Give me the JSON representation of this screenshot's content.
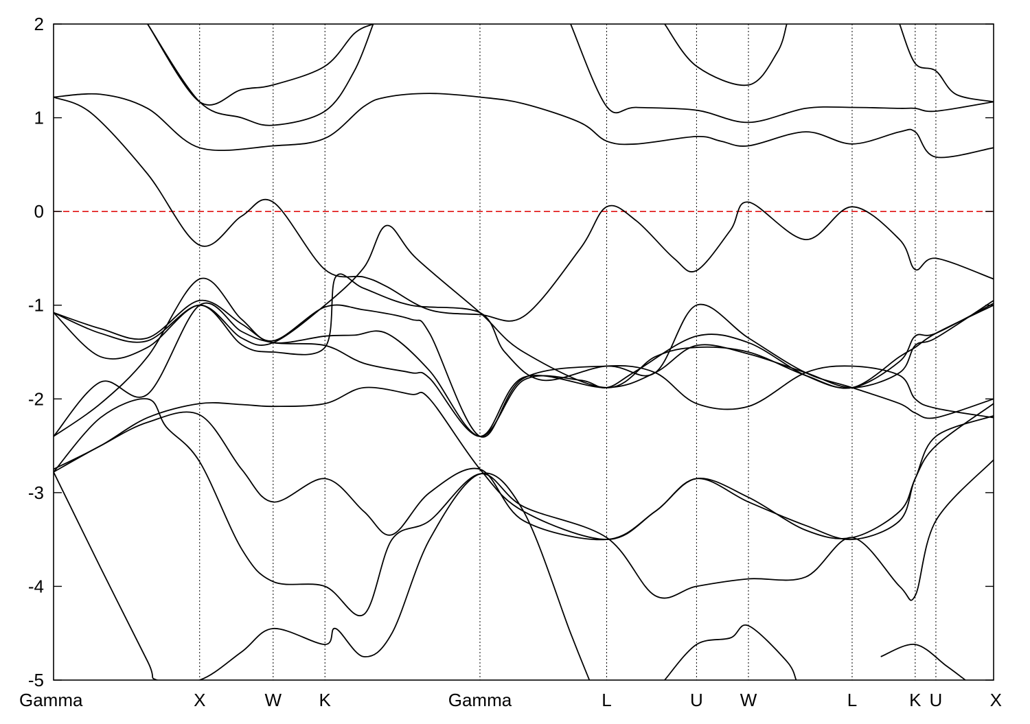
{
  "chart_data": {
    "type": "line",
    "title": "",
    "xlabel": "",
    "ylabel": "",
    "ylim": [
      -5,
      2
    ],
    "yticks": [
      2,
      1,
      0,
      -1,
      -2,
      -3,
      -4,
      -5
    ],
    "ytick_labels": [
      "2",
      "1",
      "0",
      "-1",
      "-2",
      "-3",
      "-4",
      "-5"
    ],
    "xlim": [
      0,
      1
    ],
    "high_symmetry_points": [
      {
        "label": "Gamma",
        "x": 0.0
      },
      {
        "label": "X",
        "x": 0.1554
      },
      {
        "label": "W",
        "x": 0.2336
      },
      {
        "label": "K",
        "x": 0.2887
      },
      {
        "label": "Gamma",
        "x": 0.4536
      },
      {
        "label": "L",
        "x": 0.5884
      },
      {
        "label": "U",
        "x": 0.684
      },
      {
        "label": "W",
        "x": 0.7392
      },
      {
        "label": "L",
        "x": 0.8495
      },
      {
        "label": "K",
        "x": 0.9166
      },
      {
        "label": "U",
        "x": 0.9386
      },
      {
        "label": "X",
        "x": 1.0
      }
    ],
    "fermi_level": 0,
    "fermi_color": "#e01010",
    "line_color": "#000000",
    "grid": false,
    "series": [
      {
        "x": [
          0,
          0.05,
          0.1,
          0.1554,
          0.2336,
          0.2887,
          0.33,
          0.3542,
          0.4,
          0.4536,
          0.5,
          0.56,
          0.5884,
          0.62,
          0.684,
          0.71,
          0.7392,
          0.8,
          0.8495,
          0.9,
          0.9166,
          0.9386,
          1
        ],
        "y": [
          1.22,
          1.25,
          1.1,
          0.68,
          0.7,
          0.78,
          1.12,
          1.22,
          1.26,
          1.22,
          1.15,
          0.95,
          0.75,
          0.72,
          0.8,
          0.75,
          0.7,
          0.85,
          0.72,
          0.85,
          0.85,
          0.58,
          0.68
        ]
      },
      {
        "x": [
          0,
          0.04,
          0.1,
          0.1554,
          0.2,
          0.2336,
          0.2887,
          0.33,
          0.3542,
          0.4,
          0.4536,
          0.5,
          0.56,
          0.5884,
          0.62,
          0.66,
          0.684,
          0.72,
          0.7392,
          0.8,
          0.8495,
          0.9,
          0.9166,
          0.9386,
          1
        ],
        "y": [
          1.22,
          1.05,
          0.4,
          -0.36,
          -0.05,
          0.1,
          -0.62,
          -0.7,
          -0.8,
          -1.05,
          -1.1,
          -1.12,
          -0.4,
          0.05,
          -0.1,
          -0.5,
          -0.63,
          -0.2,
          0.1,
          -0.3,
          0.05,
          -0.3,
          -0.62,
          -0.5,
          -0.72
        ]
      },
      {
        "x": [
          0,
          0.05,
          0.1,
          0.1554,
          0.2,
          0.2336,
          0.2887,
          0.32,
          0.3542,
          0.4,
          0.4536,
          0.5,
          0.56,
          0.5884,
          0.62,
          0.684,
          0.7392,
          0.8,
          0.8495,
          0.9,
          0.9166,
          0.9386,
          1
        ],
        "y": [
          -1.08,
          -1.25,
          -1.35,
          -0.95,
          -1.2,
          -1.4,
          -1.33,
          -1.32,
          -1.3,
          -1.7,
          -2.4,
          -1.8,
          -1.8,
          -1.88,
          -1.7,
          -1.33,
          -1.4,
          -1.75,
          -1.88,
          -1.6,
          -1.33,
          -1.3,
          -0.98
        ]
      },
      {
        "x": [
          0,
          0.05,
          0.1,
          0.1554,
          0.2,
          0.2336,
          0.2887,
          0.33,
          0.3542,
          0.3858,
          0.4536,
          0.5,
          0.5884,
          0.64,
          0.684,
          0.7392,
          0.8,
          0.8495,
          0.9,
          0.9166,
          0.9386,
          1
        ],
        "y": [
          -1.08,
          -1.3,
          -1.38,
          -1.0,
          -1.35,
          -1.4,
          -1.0,
          -0.6,
          -0.15,
          -0.5,
          -1.08,
          -1.5,
          -1.88,
          -1.55,
          -1.45,
          -1.5,
          -1.75,
          -1.88,
          -1.55,
          -1.45,
          -1.3,
          -1.0
        ]
      },
      {
        "x": [
          0,
          0.05,
          0.1,
          0.1554,
          0.2,
          0.2336,
          0.2887,
          0.3,
          0.33,
          0.38,
          0.4536,
          0.48,
          0.52,
          0.5884,
          0.64,
          0.684,
          0.7392,
          0.8,
          0.8495,
          0.9,
          0.9166,
          0.9386,
          1
        ],
        "y": [
          -1.08,
          -1.55,
          -1.45,
          -1.0,
          -1.42,
          -1.5,
          -1.45,
          -0.7,
          -0.82,
          -1.0,
          -1.08,
          -1.5,
          -1.8,
          -1.65,
          -1.72,
          -2.05,
          -2.08,
          -1.72,
          -1.65,
          -1.75,
          -2.0,
          -2.1,
          -2.2
        ]
      },
      {
        "x": [
          0,
          0.05,
          0.1,
          0.1554,
          0.2,
          0.2336,
          0.2887,
          0.33,
          0.38,
          0.4,
          0.4536,
          0.5,
          0.5884,
          0.64,
          0.684,
          0.7392,
          0.8,
          0.8495,
          0.9,
          0.9166,
          0.9386,
          1
        ],
        "y": [
          -2.4,
          -1.82,
          -1.95,
          -1.0,
          -1.28,
          -1.4,
          -1.43,
          -1.62,
          -1.72,
          -1.78,
          -2.4,
          -1.77,
          -1.88,
          -1.72,
          -1.43,
          -1.52,
          -1.72,
          -1.88,
          -1.72,
          -1.43,
          -1.35,
          -0.95
        ]
      },
      {
        "x": [
          0,
          0.05,
          0.1,
          0.1554,
          0.2,
          0.2336,
          0.2887,
          0.33,
          0.38,
          0.4,
          0.4536,
          0.5,
          0.5884,
          0.64,
          0.684,
          0.7392,
          0.8,
          0.8495,
          0.9,
          0.9166,
          0.9386,
          1
        ],
        "y": [
          -2.4,
          -2.05,
          -1.55,
          -0.72,
          -1.15,
          -1.38,
          -1.02,
          -1.05,
          -1.15,
          -1.3,
          -2.4,
          -1.78,
          -1.65,
          -1.72,
          -1.0,
          -1.35,
          -1.72,
          -1.88,
          -2.05,
          -2.15,
          -2.2,
          -2.0
        ]
      },
      {
        "x": [
          0,
          0.05,
          0.1,
          0.1554,
          0.2,
          0.2336,
          0.2887,
          0.33,
          0.38,
          0.4,
          0.4536,
          0.5,
          0.5884,
          0.64,
          0.684,
          0.7392,
          0.8,
          0.8495,
          0.9,
          0.9166,
          0.9386,
          1
        ],
        "y": [
          -2.75,
          -2.5,
          -2.2,
          -2.05,
          -2.06,
          -2.08,
          -2.05,
          -1.88,
          -1.95,
          -2.0,
          -2.75,
          -3.2,
          -3.5,
          -3.2,
          -2.85,
          -3.1,
          -3.35,
          -3.5,
          -3.3,
          -2.85,
          -2.5,
          -2.05
        ]
      },
      {
        "x": [
          0,
          0.05,
          0.1,
          0.1554,
          0.2,
          0.2336,
          0.2887,
          0.33,
          0.36,
          0.4,
          0.4536,
          0.5,
          0.5884,
          0.64,
          0.684,
          0.7392,
          0.8,
          0.8495,
          0.9,
          0.9166,
          0.9386,
          1
        ],
        "y": [
          -2.78,
          -2.5,
          -2.25,
          -2.17,
          -2.75,
          -3.1,
          -2.85,
          -3.2,
          -3.45,
          -3.0,
          -2.75,
          -3.3,
          -3.5,
          -3.2,
          -2.85,
          -3.05,
          -3.4,
          -3.48,
          -3.2,
          -2.85,
          -2.4,
          -2.18
        ]
      },
      {
        "x": [
          0,
          0.05,
          0.1,
          0.12,
          0.1554,
          0.2,
          0.2336,
          0.2887,
          0.33,
          0.36,
          0.4,
          0.4536,
          0.5,
          0.5884,
          0.64,
          0.684,
          0.7392,
          0.8,
          0.8495,
          0.9,
          0.9166,
          0.9386,
          1
        ],
        "y": [
          -2.78,
          -2.2,
          -2.0,
          -2.3,
          -2.67,
          -3.6,
          -3.95,
          -4.0,
          -4.3,
          -3.5,
          -3.3,
          -2.8,
          -3.15,
          -3.48,
          -4.1,
          -4.0,
          -3.92,
          -3.9,
          -3.48,
          -4.0,
          -4.1,
          -3.3,
          -2.65
        ]
      },
      {
        "x": [
          0,
          0.05,
          0.1,
          0.11,
          0.1554,
          0.2,
          0.2336,
          0.2887,
          0.3,
          0.33,
          0.36,
          0.4,
          0.4536,
          0.5,
          0.55,
          0.57
        ],
        "y": [
          -2.78,
          -3.8,
          -4.8,
          -5.0,
          -5.0,
          -4.7,
          -4.45,
          -4.62,
          -4.45,
          -4.75,
          -4.5,
          -3.5,
          -2.8,
          -3.2,
          -4.5,
          -5.0
        ]
      },
      {
        "x": [
          0.65,
          0.684,
          0.72,
          0.7392,
          0.78,
          0.79
        ],
        "y": [
          -5.0,
          -4.62,
          -4.55,
          -4.42,
          -4.8,
          -5.0
        ]
      },
      {
        "x": [
          0.88,
          0.9166,
          0.95,
          0.97
        ],
        "y": [
          -4.75,
          -4.62,
          -4.85,
          -5.0
        ]
      },
      {
        "x": [
          0.1,
          0.1554,
          0.2,
          0.2336,
          0.2887,
          0.32,
          0.34
        ],
        "y": [
          2.0,
          1.17,
          1.3,
          1.35,
          1.55,
          1.9,
          2.0
        ]
      },
      {
        "x": [
          0.1,
          0.1554,
          0.2,
          0.2336,
          0.2887,
          0.32,
          0.34
        ],
        "y": [
          2.0,
          1.17,
          1.0,
          0.92,
          1.07,
          1.5,
          2.0
        ]
      },
      {
        "x": [
          0.55,
          0.5884,
          0.62,
          0.684,
          0.7392,
          0.8,
          0.8495,
          0.9,
          0.9166,
          0.9386,
          1
        ],
        "y": [
          2.0,
          1.12,
          1.11,
          1.08,
          0.95,
          1.1,
          1.11,
          1.1,
          1.1,
          1.07,
          1.17
        ]
      },
      {
        "x": [
          0.65,
          0.684,
          0.7392,
          0.77,
          0.78
        ],
        "y": [
          2.0,
          1.55,
          1.35,
          1.7,
          2.0
        ]
      },
      {
        "x": [
          0.9,
          0.9166,
          0.9386,
          0.96,
          1
        ],
        "y": [
          2.0,
          1.58,
          1.5,
          1.25,
          1.17
        ]
      }
    ]
  }
}
